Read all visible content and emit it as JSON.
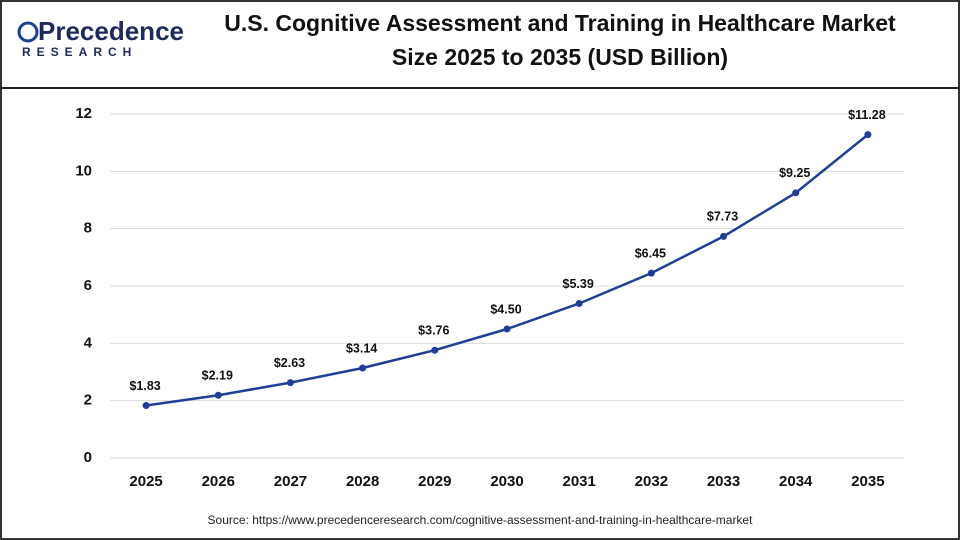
{
  "logo": {
    "name": "Precedence",
    "tagline": "RESEARCH"
  },
  "chart_data": {
    "type": "line",
    "title": [
      "U.S. Cognitive Assessment and Training in Healthcare Market",
      "Size 2025 to 2035 (USD Billion)"
    ],
    "categories": [
      "2025",
      "2026",
      "2027",
      "2028",
      "2029",
      "2030",
      "2031",
      "2032",
      "2033",
      "2034",
      "2035"
    ],
    "series": [
      {
        "color": "#1f3f96",
        "values": [
          1.83,
          2.19,
          2.63,
          3.14,
          3.76,
          4.5,
          5.39,
          6.45,
          7.73,
          9.25,
          11.28
        ],
        "value_labels": [
          "$1.83",
          "$2.19",
          "$2.63",
          "$3.14",
          "$3.76",
          "$4.50",
          "$5.39",
          "$6.45",
          "$7.73",
          "$9.25",
          "$11.28"
        ]
      }
    ],
    "ylim": [
      0,
      12
    ],
    "yticks": [
      0,
      2,
      4,
      6,
      8,
      10,
      12
    ],
    "grid": true,
    "source": "Source: https://www.precedenceresearch.com/cognitive-assessment-and-training-in-healthcare-market"
  }
}
